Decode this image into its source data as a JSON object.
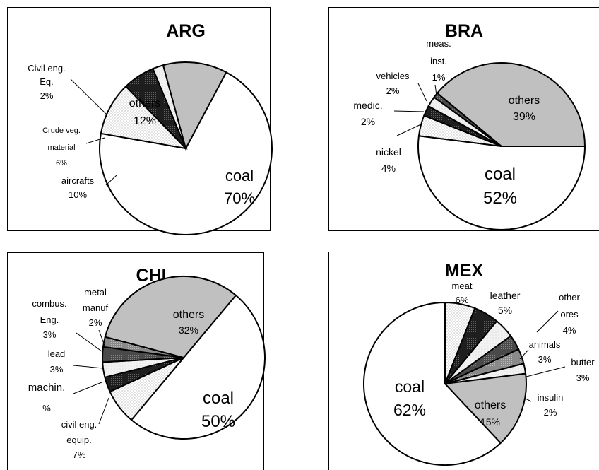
{
  "chart_data": [
    {
      "type": "pie",
      "title": "ARG",
      "slices": [
        {
          "label": "coal",
          "pct": "70%",
          "value": 70,
          "fill": "white"
        },
        {
          "label": "aircrafts",
          "pct": "10%",
          "value": 10,
          "fill": "dots"
        },
        {
          "label": "Crude veg. material",
          "pct": "6%",
          "value": 6,
          "fill": "black"
        },
        {
          "label": "Civil eng. Eq.",
          "pct": "2%",
          "value": 2,
          "fill": "light"
        },
        {
          "label": "others",
          "pct": "12%",
          "value": 12,
          "fill": "gray"
        }
      ]
    },
    {
      "type": "pie",
      "title": "BRA",
      "slices": [
        {
          "label": "coal",
          "pct": "52%",
          "value": 52,
          "fill": "white"
        },
        {
          "label": "nickel",
          "pct": "4%",
          "value": 4,
          "fill": "dots"
        },
        {
          "label": "medic.",
          "pct": "2%",
          "value": 2,
          "fill": "black"
        },
        {
          "label": "vehicles",
          "pct": "2%",
          "value": 2,
          "fill": "light"
        },
        {
          "label": "meas. inst.",
          "pct": "1%",
          "value": 1,
          "fill": "dark"
        },
        {
          "label": "others",
          "pct": "39%",
          "value": 39,
          "fill": "gray"
        }
      ]
    },
    {
      "type": "pie",
      "title": "CHI",
      "slices": [
        {
          "label": "coal",
          "pct": "50%",
          "value": 50,
          "fill": "white"
        },
        {
          "label": "civil eng. equip.",
          "pct": "7%",
          "value": 7,
          "fill": "dots"
        },
        {
          "label": "machin.",
          "pct": "%",
          "value": 3,
          "fill": "black"
        },
        {
          "label": "lead",
          "pct": "3%",
          "value": 3,
          "fill": "light"
        },
        {
          "label": "combus. Eng.",
          "pct": "3%",
          "value": 3,
          "fill": "dark"
        },
        {
          "label": "metal manuf",
          "pct": "2%",
          "value": 2,
          "fill": "mid"
        },
        {
          "label": "others",
          "pct": "32%",
          "value": 32,
          "fill": "gray"
        }
      ]
    },
    {
      "type": "pie",
      "title": "MEX",
      "slices": [
        {
          "label": "coal",
          "pct": "62%",
          "value": 62,
          "fill": "white"
        },
        {
          "label": "meat",
          "pct": "6%",
          "value": 6,
          "fill": "dots"
        },
        {
          "label": "leather",
          "pct": "5%",
          "value": 5,
          "fill": "black"
        },
        {
          "label": "other ores",
          "pct": "4%",
          "value": 4,
          "fill": "light"
        },
        {
          "label": "animals",
          "pct": "3%",
          "value": 3,
          "fill": "dark"
        },
        {
          "label": "butter",
          "pct": "3%",
          "value": 3,
          "fill": "mid"
        },
        {
          "label": "insulin",
          "pct": "2%",
          "value": 2,
          "fill": "light"
        },
        {
          "label": "others",
          "pct": "15%",
          "value": 15,
          "fill": "gray"
        }
      ]
    }
  ],
  "colors": {
    "white": "#ffffff",
    "gray": "#c0c0c0",
    "black": "#1e1e1e",
    "dark": "#555555",
    "mid": "#8a8a8a",
    "light": "#f2f2f2",
    "border": "#000000"
  }
}
